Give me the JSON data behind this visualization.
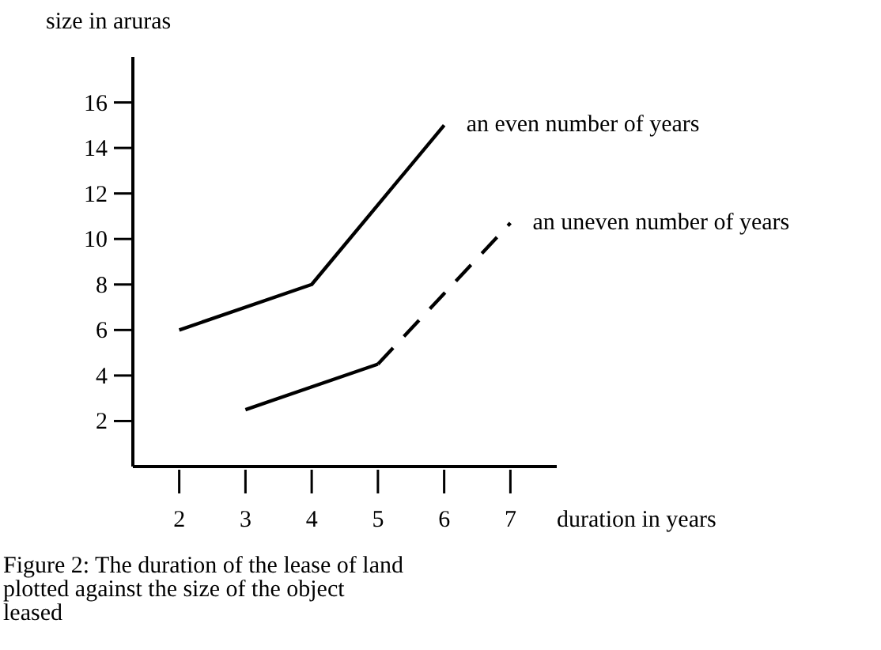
{
  "chart_data": {
    "type": "line",
    "xlabel": "duration in years",
    "ylabel": "size in aruras",
    "xlim": [
      1.3,
      7.7
    ],
    "ylim": [
      0,
      18
    ],
    "xticks": [
      2,
      3,
      4,
      5,
      6,
      7
    ],
    "yticks": [
      2,
      4,
      6,
      8,
      10,
      12,
      14,
      16
    ],
    "grid": false,
    "marker": "none",
    "series": [
      {
        "name": "an even number of years",
        "color": "#000000",
        "x": [
          2,
          4,
          6
        ],
        "values": [
          6,
          8,
          15
        ],
        "line_style": "solid"
      },
      {
        "color": "#000000",
        "x": [
          3,
          5
        ],
        "values": [
          2.5,
          4.5
        ],
        "line_style": "solid"
      },
      {
        "name": "an uneven number of years",
        "color": "#000000",
        "x": [
          5,
          7
        ],
        "values": [
          4.5,
          10.7
        ],
        "line_style": "dashed"
      }
    ],
    "annotations": [
      "Figure 2: The duration of the lease of land plotted against the size of the object leased"
    ]
  }
}
